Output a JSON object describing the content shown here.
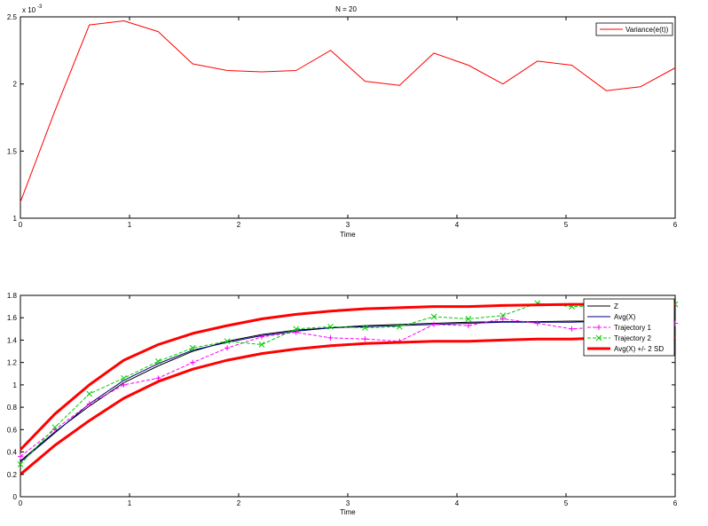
{
  "chart_data": [
    {
      "type": "line",
      "title": "N = 20",
      "xlabel": "Time",
      "ylabel": "",
      "y_exponent_label": "x 10",
      "y_exponent_power": "-3",
      "xlim": [
        0,
        6
      ],
      "ylim": [
        1,
        2.5
      ],
      "xticks": [
        "0",
        "1",
        "2",
        "3",
        "4",
        "5",
        "6"
      ],
      "yticks": [
        "1",
        "1.5",
        "2",
        "2.5"
      ],
      "grid": false,
      "legend_position": "top-right",
      "series": [
        {
          "name": "Variance(e(t))",
          "color": "#ff0000",
          "x": [
            0,
            0.316,
            0.632,
            0.947,
            1.263,
            1.579,
            1.895,
            2.211,
            2.526,
            2.842,
            3.158,
            3.474,
            3.789,
            4.105,
            4.421,
            4.737,
            5.053,
            5.368,
            5.684,
            6.0
          ],
          "y": [
            1.12,
            1.8,
            2.44,
            2.47,
            2.39,
            2.15,
            2.1,
            2.09,
            2.1,
            2.25,
            2.02,
            1.99,
            2.23,
            2.14,
            2.0,
            2.17,
            2.14,
            1.95,
            1.98,
            2.12
          ]
        }
      ]
    },
    {
      "type": "line",
      "title": "",
      "xlabel": "Time",
      "ylabel": "",
      "xlim": [
        0,
        6
      ],
      "ylim": [
        0,
        1.8
      ],
      "xticks": [
        "0",
        "1",
        "2",
        "3",
        "4",
        "5",
        "6"
      ],
      "yticks": [
        "0",
        "0.2",
        "0.4",
        "0.6",
        "0.8",
        "1",
        "1.2",
        "1.4",
        "1.6",
        "1.8"
      ],
      "grid": false,
      "legend_position": "top-right",
      "series": [
        {
          "name": "Z",
          "color": "#000000",
          "x": [
            0,
            0.316,
            0.632,
            0.947,
            1.263,
            1.579,
            1.895,
            2.211,
            2.526,
            2.842,
            3.158,
            3.474,
            3.789,
            4.105,
            4.421,
            4.737,
            5.053,
            5.368,
            5.684,
            6.0
          ],
          "y": [
            0.32,
            0.58,
            0.81,
            1.02,
            1.17,
            1.3,
            1.39,
            1.45,
            1.49,
            1.51,
            1.53,
            1.54,
            1.55,
            1.56,
            1.565,
            1.565,
            1.57,
            1.57,
            1.57,
            1.57
          ]
        },
        {
          "name": "Avg(X)",
          "color": "#000080",
          "x": [
            0,
            0.316,
            0.632,
            0.947,
            1.263,
            1.579,
            1.895,
            2.211,
            2.526,
            2.842,
            3.158,
            3.474,
            3.789,
            4.105,
            4.421,
            4.737,
            5.053,
            5.368,
            5.684,
            6.0
          ],
          "y": [
            0.31,
            0.57,
            0.83,
            1.04,
            1.19,
            1.31,
            1.38,
            1.44,
            1.48,
            1.51,
            1.52,
            1.53,
            1.54,
            1.55,
            1.56,
            1.56,
            1.56,
            1.57,
            1.57,
            1.57
          ]
        },
        {
          "name": "Trajectory 1",
          "color": "#ff00ff",
          "x": [
            0,
            0.316,
            0.632,
            0.947,
            1.263,
            1.579,
            1.895,
            2.211,
            2.526,
            2.842,
            3.158,
            3.474,
            3.789,
            4.105,
            4.421,
            4.737,
            5.053,
            5.368,
            5.684,
            6.0
          ],
          "y": [
            0.36,
            0.6,
            0.83,
            1.0,
            1.06,
            1.2,
            1.33,
            1.43,
            1.47,
            1.42,
            1.41,
            1.39,
            1.54,
            1.53,
            1.59,
            1.55,
            1.5,
            1.52,
            1.54,
            1.55
          ]
        },
        {
          "name": "Trajectory 2",
          "color": "#00cc00",
          "x": [
            0,
            0.316,
            0.632,
            0.947,
            1.263,
            1.579,
            1.895,
            2.211,
            2.526,
            2.842,
            3.158,
            3.474,
            3.789,
            4.105,
            4.421,
            4.737,
            5.053,
            5.368,
            5.684,
            6.0
          ],
          "y": [
            0.29,
            0.62,
            0.92,
            1.06,
            1.21,
            1.33,
            1.39,
            1.36,
            1.5,
            1.52,
            1.51,
            1.52,
            1.61,
            1.59,
            1.62,
            1.73,
            1.7,
            1.71,
            1.71,
            1.72
          ]
        },
        {
          "name": "Avg(X) +/- 2 SD",
          "color": "#ff0000",
          "x": [
            0,
            0.316,
            0.632,
            0.947,
            1.263,
            1.579,
            1.895,
            2.211,
            2.526,
            2.842,
            3.158,
            3.474,
            3.789,
            4.105,
            4.421,
            4.737,
            5.053,
            5.368,
            5.684,
            6.0
          ],
          "y": [
            0.42,
            0.74,
            1.0,
            1.22,
            1.36,
            1.46,
            1.53,
            1.59,
            1.63,
            1.66,
            1.68,
            1.69,
            1.7,
            1.7,
            1.71,
            1.715,
            1.72,
            1.72,
            1.72,
            1.72
          ]
        },
        {
          "name": "",
          "color": "#ff0000",
          "x": [
            0,
            0.316,
            0.632,
            0.947,
            1.263,
            1.579,
            1.895,
            2.211,
            2.526,
            2.842,
            3.158,
            3.474,
            3.789,
            4.105,
            4.421,
            4.737,
            5.053,
            5.368,
            5.684,
            6.0
          ],
          "y": [
            0.2,
            0.46,
            0.68,
            0.88,
            1.03,
            1.14,
            1.22,
            1.28,
            1.32,
            1.35,
            1.37,
            1.38,
            1.39,
            1.39,
            1.4,
            1.41,
            1.41,
            1.42,
            1.42,
            1.42
          ]
        }
      ]
    }
  ]
}
